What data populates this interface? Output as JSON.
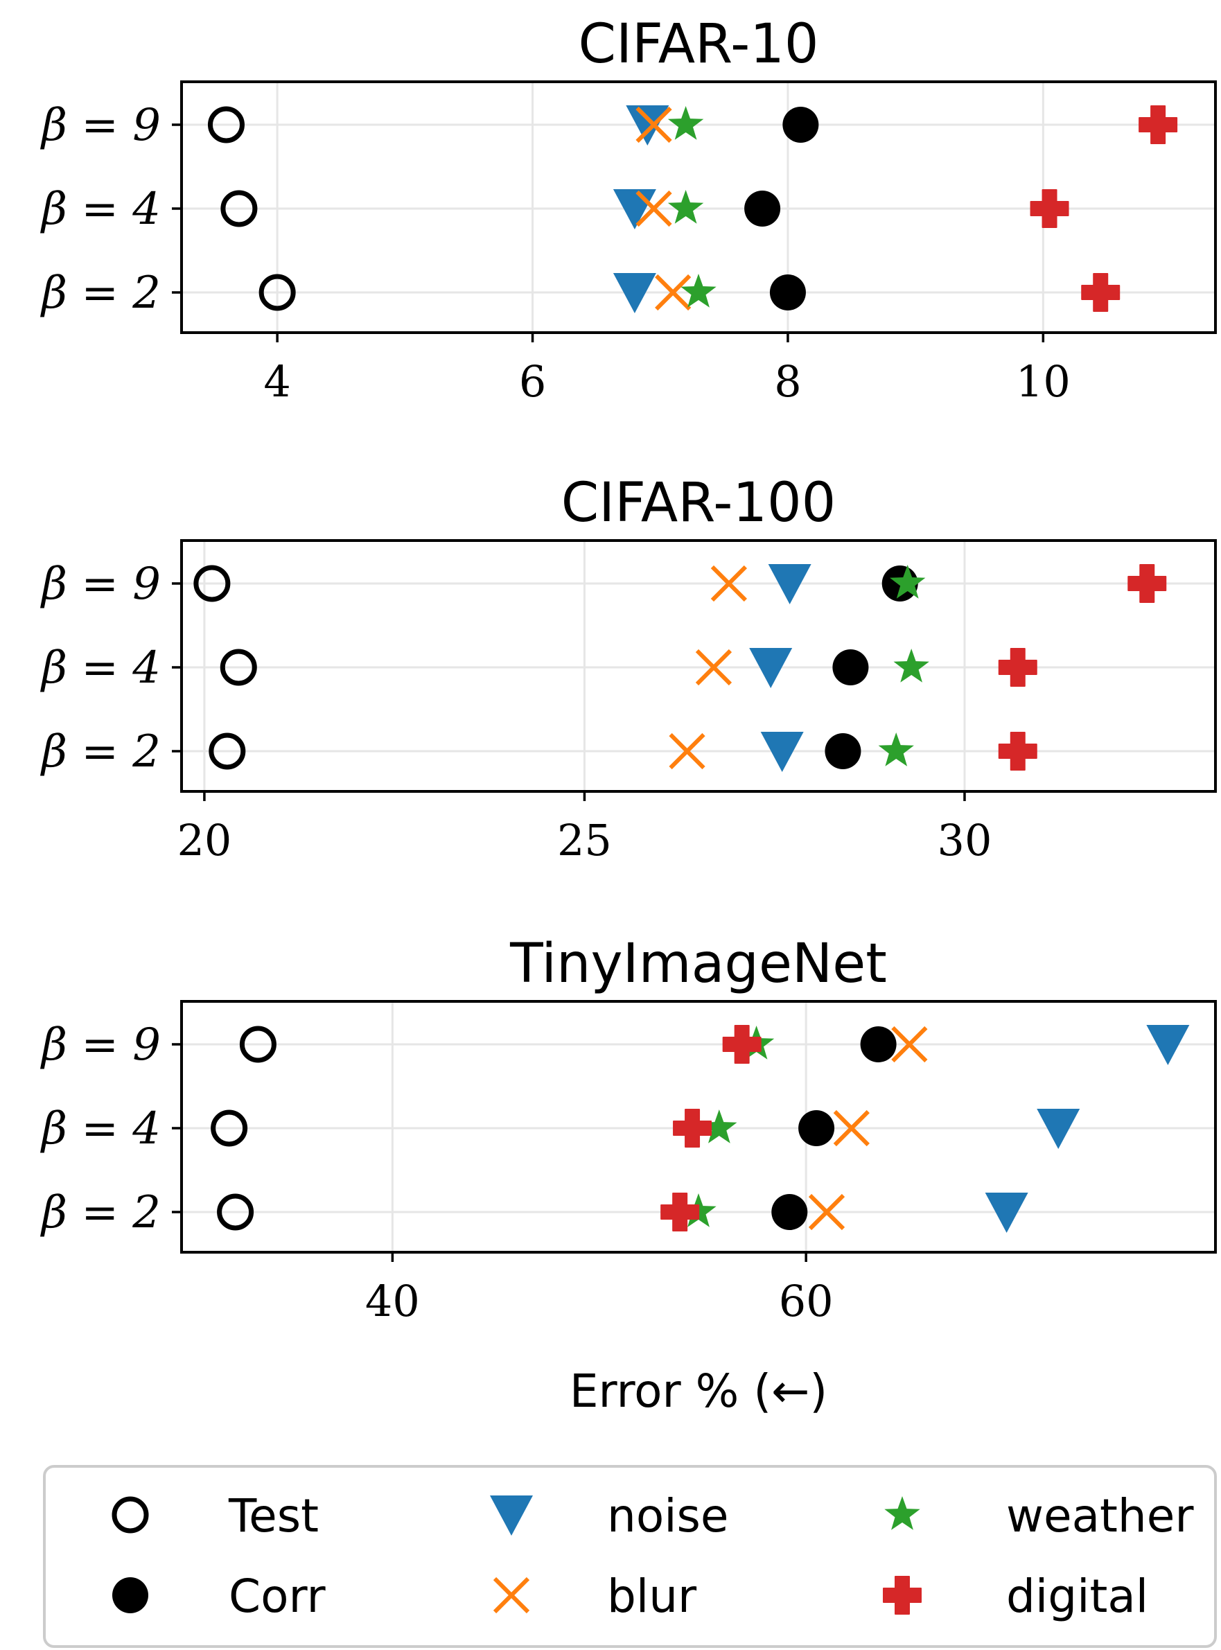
{
  "chart_data": [
    {
      "type": "scatter",
      "title": "CIFAR-10",
      "xlim": [
        3.25,
        11.35
      ],
      "xticks": [
        4,
        6,
        8,
        10
      ],
      "xtick_labels": [
        "4",
        "6",
        "8",
        "10"
      ],
      "categories": [
        "β = 9",
        "β = 4",
        "β = 2"
      ],
      "series": [
        {
          "name": "Test",
          "values": [
            3.6,
            3.7,
            4.0
          ]
        },
        {
          "name": "Corr",
          "values": [
            8.1,
            7.8,
            8.0
          ]
        },
        {
          "name": "noise",
          "values": [
            6.9,
            6.8,
            6.8
          ]
        },
        {
          "name": "blur",
          "values": [
            6.95,
            6.95,
            7.1
          ]
        },
        {
          "name": "weather",
          "values": [
            7.2,
            7.2,
            7.3
          ]
        },
        {
          "name": "digital",
          "values": [
            10.9,
            10.05,
            10.45
          ]
        }
      ],
      "grid": true
    },
    {
      "type": "scatter",
      "title": "CIFAR-100",
      "xlim": [
        19.7,
        33.3
      ],
      "xticks": [
        20,
        25,
        30
      ],
      "xtick_labels": [
        "20",
        "25",
        "30"
      ],
      "categories": [
        "β = 9",
        "β = 4",
        "β = 2"
      ],
      "series": [
        {
          "name": "Test",
          "values": [
            20.1,
            20.45,
            20.3
          ]
        },
        {
          "name": "Corr",
          "values": [
            29.15,
            28.5,
            28.4
          ]
        },
        {
          "name": "noise",
          "values": [
            27.7,
            27.45,
            27.6
          ]
        },
        {
          "name": "blur",
          "values": [
            26.9,
            26.7,
            26.35
          ]
        },
        {
          "name": "weather",
          "values": [
            29.25,
            29.3,
            29.1
          ]
        },
        {
          "name": "digital",
          "values": [
            32.4,
            30.7,
            30.7
          ]
        }
      ],
      "grid": true
    },
    {
      "type": "scatter",
      "title": "TinyImageNet",
      "xlim": [
        29.8,
        79.8
      ],
      "xticks": [
        40,
        60
      ],
      "xtick_labels": [
        "40",
        "60"
      ],
      "categories": [
        "β = 9",
        "β = 4",
        "β = 2"
      ],
      "series": [
        {
          "name": "Test",
          "values": [
            33.5,
            32.1,
            32.4
          ]
        },
        {
          "name": "Corr",
          "values": [
            63.5,
            60.5,
            59.2
          ]
        },
        {
          "name": "noise",
          "values": [
            77.5,
            72.2,
            69.7
          ]
        },
        {
          "name": "blur",
          "values": [
            65.0,
            62.2,
            61.0
          ]
        },
        {
          "name": "weather",
          "values": [
            57.6,
            55.8,
            54.8
          ]
        },
        {
          "name": "digital",
          "values": [
            56.9,
            54.5,
            53.9
          ]
        }
      ],
      "grid": true
    }
  ],
  "xlabel": "Error % (←)",
  "legend": {
    "placement": "bottom",
    "entries": [
      {
        "label": "Test",
        "marker": "open-circle",
        "color": "#000000"
      },
      {
        "label": "Corr",
        "marker": "filled-circle",
        "color": "#000000"
      },
      {
        "label": "noise",
        "marker": "triangle-down",
        "color": "#1f77b4"
      },
      {
        "label": "blur",
        "marker": "x",
        "color": "#ff7f0e"
      },
      {
        "label": "weather",
        "marker": "star",
        "color": "#2ca02c"
      },
      {
        "label": "digital",
        "marker": "plus-filled",
        "color": "#d62728"
      }
    ]
  },
  "colors": {
    "Test": "#000000",
    "Corr": "#000000",
    "noise": "#1f77b4",
    "blur": "#ff7f0e",
    "weather": "#2ca02c",
    "digital": "#d62728",
    "grid": "#e6e6e6"
  }
}
